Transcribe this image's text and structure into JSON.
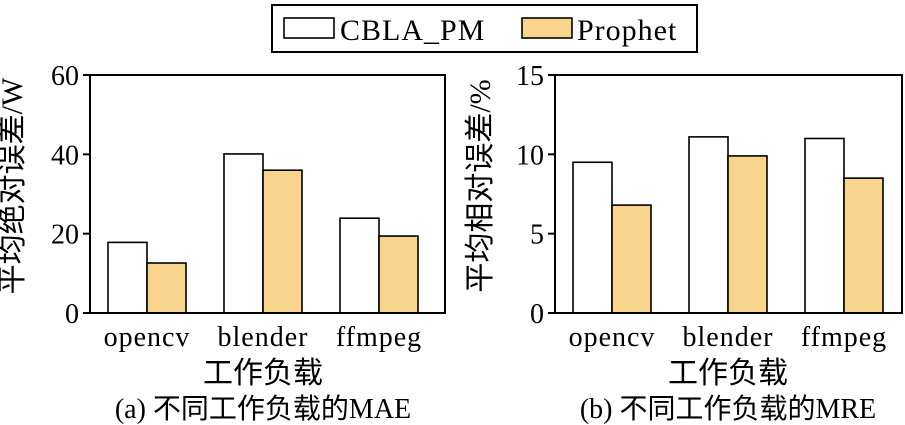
{
  "chart_data": [
    {
      "type": "bar",
      "categories": [
        "opencv",
        "blender",
        "ffmpeg"
      ],
      "series": [
        {
          "name": "CBLA_PM",
          "color": "#ffffff",
          "values": [
            17.8,
            40.1,
            23.9
          ]
        },
        {
          "name": "Prophet",
          "color": "#f8d48c",
          "values": [
            12.6,
            36.0,
            19.4
          ]
        }
      ],
      "xlabel": "工作负载",
      "ylabel": "平均绝对误差/W",
      "ylim": [
        0,
        60
      ],
      "yticks": [
        0,
        20,
        40,
        60
      ],
      "caption": "(a) 不同工作负载的MAE",
      "grid": false,
      "legend": "top-center"
    },
    {
      "type": "bar",
      "categories": [
        "opencv",
        "blender",
        "ffmpeg"
      ],
      "series": [
        {
          "name": "CBLA_PM",
          "color": "#ffffff",
          "values": [
            9.5,
            11.1,
            11.0
          ]
        },
        {
          "name": "Prophet",
          "color": "#f8d48c",
          "values": [
            6.8,
            9.9,
            8.5
          ]
        }
      ],
      "xlabel": "工作负载",
      "ylabel": "平均相对误差/%",
      "ylim": [
        0,
        15
      ],
      "yticks": [
        0,
        5,
        10,
        15
      ],
      "caption": "(b) 不同工作负载的MRE",
      "grid": false,
      "legend": "top-center"
    }
  ]
}
